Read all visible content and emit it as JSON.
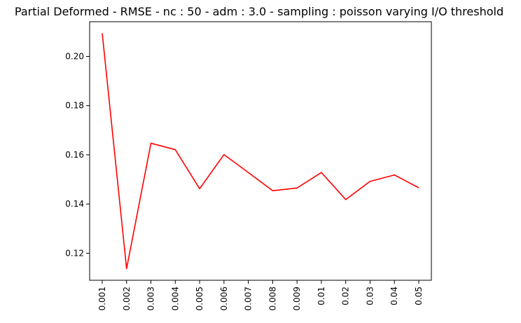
{
  "chart_data": {
    "type": "line",
    "title": "Partial Deformed - RMSE - nc : 50 - adm : 3.0 - sampling : poisson varying I/O threshold",
    "xlabel": "",
    "ylabel": "",
    "categories": [
      "0.001",
      "0.002",
      "0.003",
      "0.004",
      "0.005",
      "0.006",
      "0.007",
      "0.008",
      "0.009",
      "0.01",
      "0.02",
      "0.03",
      "0.04",
      "0.05"
    ],
    "series": [
      {
        "color": "#ff0000",
        "values": [
          0.2094,
          0.1137,
          0.1647,
          0.1621,
          0.1462,
          0.1601,
          0.1528,
          0.1454,
          0.1465,
          0.1528,
          0.1418,
          0.1492,
          0.1518,
          0.1466
        ]
      }
    ],
    "yticks": [
      "0.12",
      "0.14",
      "0.16",
      "0.18",
      "0.20"
    ],
    "ylim": [
      0.109,
      0.2141
    ],
    "grid": false,
    "legend": "none"
  }
}
